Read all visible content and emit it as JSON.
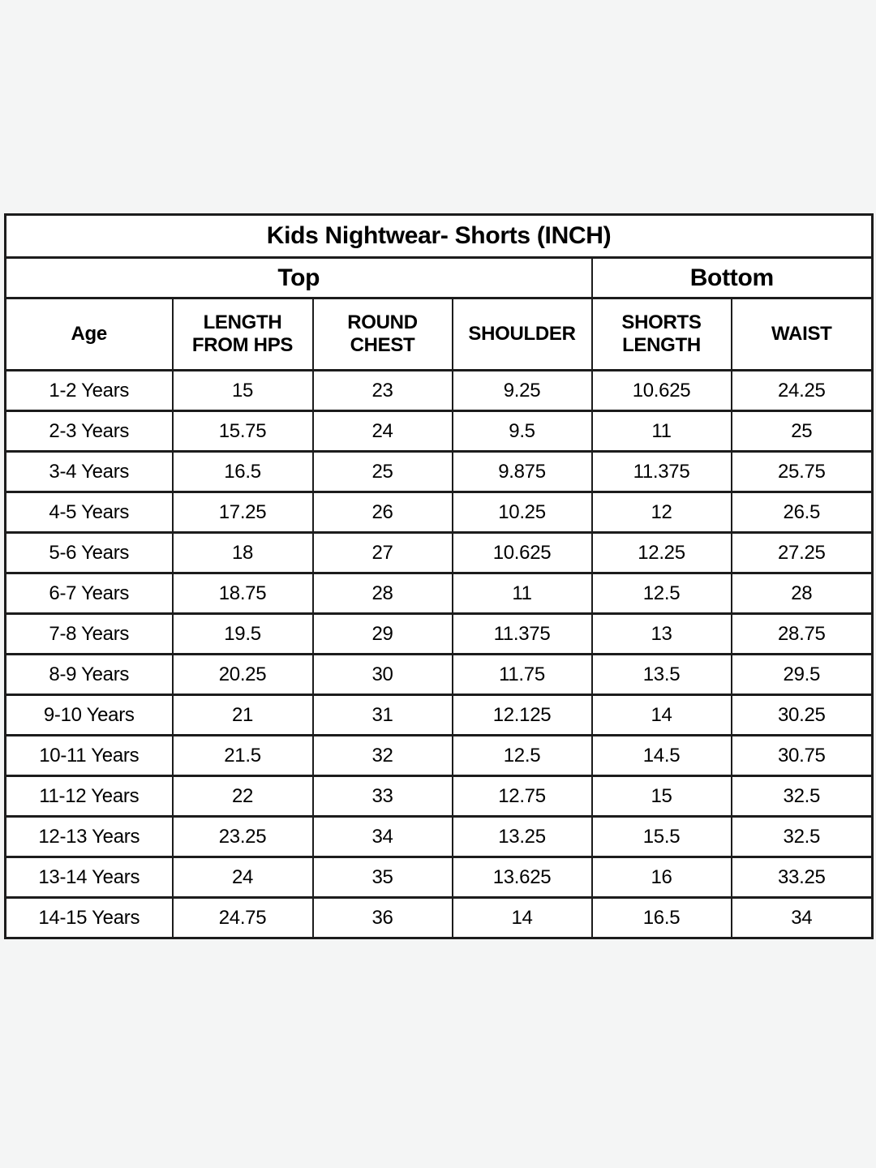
{
  "page": {
    "background_color": "#f4f5f5",
    "table_background_color": "#ffffff",
    "border_color": "#1c1c1c",
    "text_color": "#000000"
  },
  "size_chart": {
    "title": "Kids Nightwear- Shorts (INCH)",
    "sections": [
      {
        "label": "Top",
        "columns_spanned": 4
      },
      {
        "label": "Bottom",
        "columns_spanned": 2
      }
    ],
    "columns": [
      "Age",
      "LENGTH FROM HPS",
      "ROUND CHEST",
      "SHOULDER",
      "SHORTS LENGTH",
      "WAIST"
    ],
    "rows": [
      [
        "1-2 Years",
        "15",
        "23",
        "9.25",
        "10.625",
        "24.25"
      ],
      [
        "2-3 Years",
        "15.75",
        "24",
        "9.5",
        "11",
        "25"
      ],
      [
        "3-4 Years",
        "16.5",
        "25",
        "9.875",
        "11.375",
        "25.75"
      ],
      [
        "4-5 Years",
        "17.25",
        "26",
        "10.25",
        "12",
        "26.5"
      ],
      [
        "5-6 Years",
        "18",
        "27",
        "10.625",
        "12.25",
        "27.25"
      ],
      [
        "6-7 Years",
        "18.75",
        "28",
        "11",
        "12.5",
        "28"
      ],
      [
        "7-8 Years",
        "19.5",
        "29",
        "11.375",
        "13",
        "28.75"
      ],
      [
        "8-9 Years",
        "20.25",
        "30",
        "11.75",
        "13.5",
        "29.5"
      ],
      [
        "9-10 Years",
        "21",
        "31",
        "12.125",
        "14",
        "30.25"
      ],
      [
        "10-11 Years",
        "21.5",
        "32",
        "12.5",
        "14.5",
        "30.75"
      ],
      [
        "11-12 Years",
        "22",
        "33",
        "12.75",
        "15",
        "32.5"
      ],
      [
        "12-13 Years",
        "23.25",
        "34",
        "13.25",
        "15.5",
        "32.5"
      ],
      [
        "13-14 Years",
        "24",
        "35",
        "13.625",
        "16",
        "33.25"
      ],
      [
        "14-15 Years",
        "24.75",
        "36",
        "14",
        "16.5",
        "34"
      ]
    ]
  }
}
